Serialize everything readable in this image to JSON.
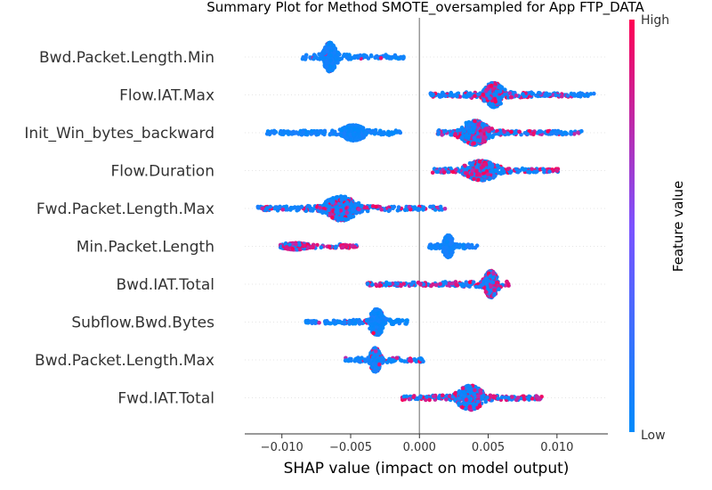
{
  "chart_data": {
    "type": "scatter",
    "title": "Summary Plot for Method SMOTE_oversampled for App FTP_DATA",
    "xlabel": "SHAP value (impact on model output)",
    "xlim": [
      -0.0127,
      0.0137
    ],
    "x_ticks": [
      -0.01,
      -0.005,
      0.0,
      0.005,
      0.01
    ],
    "x_tick_labels": [
      "−0.010",
      "−0.005",
      "0.000",
      "0.005",
      "0.010"
    ],
    "zero_line": 0,
    "grid": false,
    "colorbar": {
      "label": "Feature value",
      "high_label": "High",
      "low_label": "Low",
      "low_color": "#008bfb",
      "mid_color": "#7c52ff",
      "high_color": "#ff0052"
    },
    "features": [
      {
        "name": "Bwd.Packet.Length.Min",
        "clusters": [
          {
            "from": -0.0086,
            "to": -0.0011,
            "center": -0.0065,
            "spread": 0.0004,
            "peak": 0.0065,
            "high_share": 0.03
          }
        ]
      },
      {
        "name": "Flow.IAT.Max",
        "clusters": [
          {
            "from": 0.0008,
            "to": 0.0127,
            "center": 0.0054,
            "spread": 0.0006,
            "peak": 0.0055,
            "high_share": 0.3
          }
        ]
      },
      {
        "name": "Init_Win_bytes_backward",
        "clusters": [
          {
            "from": -0.0111,
            "to": -0.0013,
            "center": -0.0048,
            "spread": 0.0007,
            "peak": 0.0035,
            "high_share": 0.0
          },
          {
            "from": 0.0013,
            "to": 0.0118,
            "center": 0.004,
            "spread": 0.0009,
            "peak": 0.0055,
            "high_share": 0.35
          }
        ]
      },
      {
        "name": "Flow.Duration",
        "clusters": [
          {
            "from": 0.0009,
            "to": 0.0103,
            "center": 0.0045,
            "spread": 0.001,
            "peak": 0.0045,
            "high_share": 0.45
          }
        ]
      },
      {
        "name": "Fwd.Packet.Length.Max",
        "clusters": [
          {
            "from": -0.0118,
            "to": 0.002,
            "center": -0.0057,
            "spread": 0.001,
            "peak": 0.0055,
            "high_share": 0.25
          }
        ]
      },
      {
        "name": "Min.Packet.Length",
        "clusters": [
          {
            "from": -0.0101,
            "to": -0.0045,
            "center": -0.009,
            "spread": 0.0008,
            "peak": 0.0015,
            "high_share": 0.7
          },
          {
            "from": 0.0007,
            "to": 0.0042,
            "center": 0.0021,
            "spread": 0.0003,
            "peak": 0.005,
            "high_share": 0.0
          }
        ]
      },
      {
        "name": "Bwd.IAT.Total",
        "clusters": [
          {
            "from": -0.0038,
            "to": 0.0065,
            "center": 0.0052,
            "spread": 0.0004,
            "peak": 0.006,
            "high_share": 0.4
          }
        ]
      },
      {
        "name": "Subflow.Bwd.Bytes",
        "clusters": [
          {
            "from": -0.0083,
            "to": -0.0008,
            "center": -0.0031,
            "spread": 0.0004,
            "peak": 0.006,
            "high_share": 0.05
          }
        ]
      },
      {
        "name": "Bwd.Packet.Length.Max",
        "clusters": [
          {
            "from": -0.0054,
            "to": 0.0003,
            "center": -0.0032,
            "spread": 0.0003,
            "peak": 0.0055,
            "high_share": 0.2
          }
        ]
      },
      {
        "name": "Fwd.IAT.Total",
        "clusters": [
          {
            "from": -0.0013,
            "to": 0.009,
            "center": 0.0037,
            "spread": 0.0008,
            "peak": 0.0055,
            "high_share": 0.4
          }
        ]
      }
    ]
  }
}
